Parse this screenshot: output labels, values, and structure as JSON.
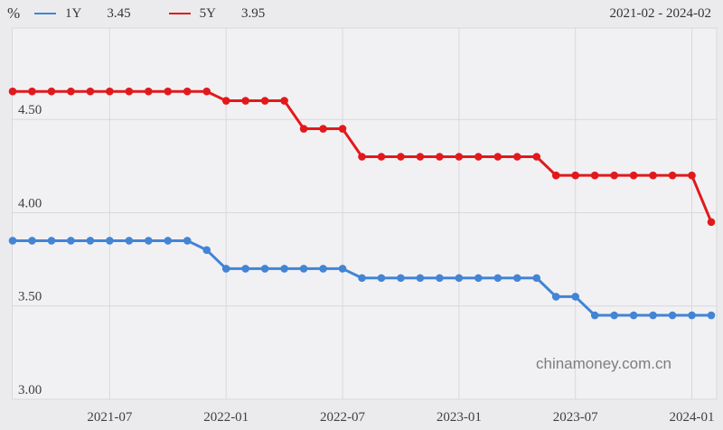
{
  "header": {
    "unit": "%",
    "legend": [
      {
        "label": "1Y",
        "value": "3.45"
      },
      {
        "label": "5Y",
        "value": "3.95"
      }
    ],
    "date_range": "2021-02 - 2024-02"
  },
  "watermark": "chinamoney.com.cn",
  "chart_data": {
    "type": "line",
    "title": "",
    "xlabel": "",
    "ylabel": "%",
    "x": [
      "2021-02",
      "2021-03",
      "2021-04",
      "2021-05",
      "2021-06",
      "2021-07",
      "2021-08",
      "2021-09",
      "2021-10",
      "2021-11",
      "2021-12",
      "2022-01",
      "2022-02",
      "2022-03",
      "2022-04",
      "2022-05",
      "2022-06",
      "2022-07",
      "2022-08",
      "2022-09",
      "2022-10",
      "2022-11",
      "2022-12",
      "2023-01",
      "2023-02",
      "2023-03",
      "2023-04",
      "2023-05",
      "2023-06",
      "2023-07",
      "2023-08",
      "2023-09",
      "2023-10",
      "2023-11",
      "2023-12",
      "2024-01",
      "2024-02"
    ],
    "series": [
      {
        "name": "1Y",
        "color": "#4384d4",
        "values": [
          3.85,
          3.85,
          3.85,
          3.85,
          3.85,
          3.85,
          3.85,
          3.85,
          3.85,
          3.85,
          3.8,
          3.7,
          3.7,
          3.7,
          3.7,
          3.7,
          3.7,
          3.7,
          3.65,
          3.65,
          3.65,
          3.65,
          3.65,
          3.65,
          3.65,
          3.65,
          3.65,
          3.65,
          3.55,
          3.55,
          3.45,
          3.45,
          3.45,
          3.45,
          3.45,
          3.45,
          3.45
        ]
      },
      {
        "name": "5Y",
        "color": "#e2191c",
        "values": [
          4.65,
          4.65,
          4.65,
          4.65,
          4.65,
          4.65,
          4.65,
          4.65,
          4.65,
          4.65,
          4.65,
          4.6,
          4.6,
          4.6,
          4.6,
          4.45,
          4.45,
          4.45,
          4.3,
          4.3,
          4.3,
          4.3,
          4.3,
          4.3,
          4.3,
          4.3,
          4.3,
          4.3,
          4.2,
          4.2,
          4.2,
          4.2,
          4.2,
          4.2,
          4.2,
          4.2,
          3.95
        ]
      }
    ],
    "ylim": [
      3.0,
      4.99
    ],
    "yticks": [
      3.0,
      3.5,
      4.0,
      4.5
    ],
    "ytick_labels": [
      "3.00",
      "3.50",
      "4.00",
      "4.50"
    ],
    "xticks": [
      "2021-07",
      "2022-01",
      "2022-07",
      "2023-01",
      "2023-07",
      "2024-01"
    ],
    "grid": true,
    "legend_position": "top",
    "colors": {
      "page_bg": "#ebebed",
      "plot_bg": "#f1f1f3",
      "grid": "#d8d8de",
      "text": "#404040",
      "watermark": "#7d7d7d"
    }
  }
}
